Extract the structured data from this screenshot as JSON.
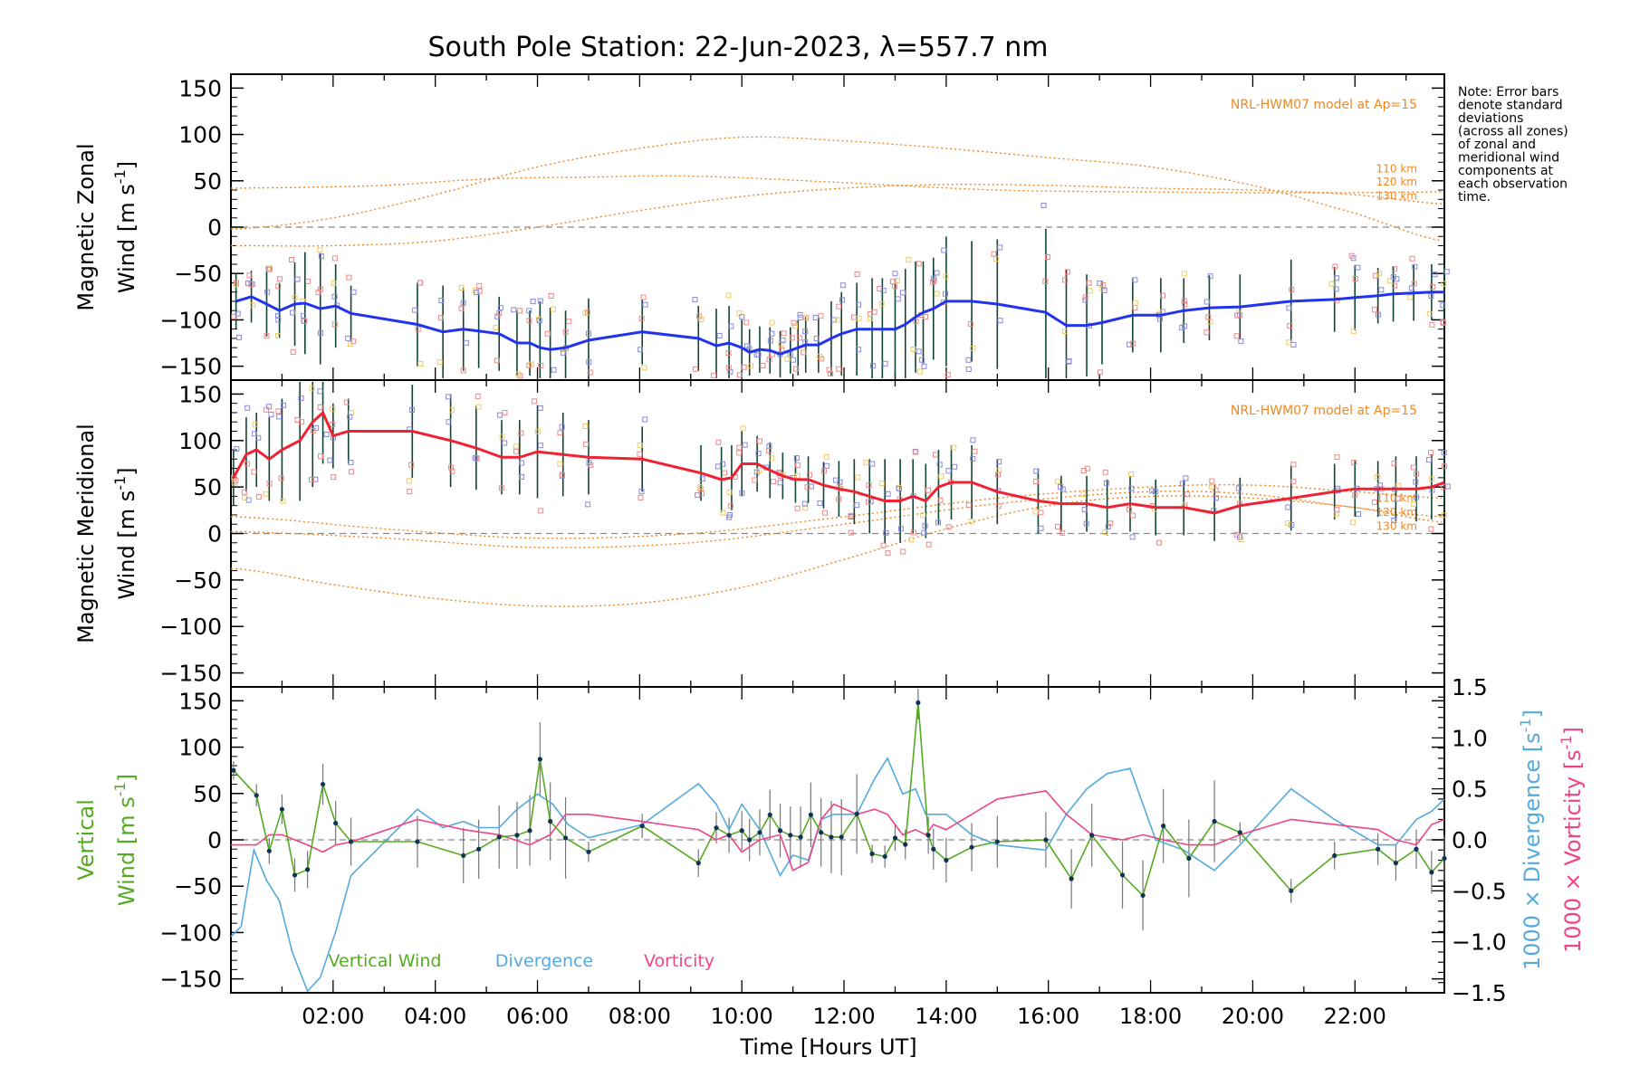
{
  "title": "South Pole Station: 22-Jun-2023, λ=557.7 nm",
  "note": [
    "Note: Error bars",
    "denote standard",
    "deviations",
    "(across all zones)",
    "of zonal and",
    "meridional wind",
    "components at",
    "each observation",
    "time."
  ],
  "colors": {
    "zonal": "#2233ee",
    "meridional": "#ee2233",
    "vertical": "#55aa22",
    "divergence": "#55aadd",
    "vorticity": "#ee4488",
    "model": "#ee8822",
    "errorbar": "#114433",
    "scatter_blue": "#8888dd",
    "scatter_red": "#ee8888",
    "scatter_yellow": "#eecc66",
    "zero": "#888888"
  },
  "chart_data": [
    {
      "type": "line",
      "panel": "zonal",
      "ylabel": [
        "Magnetic Zonal",
        "Wind [m s⁻¹]"
      ],
      "ylabel_parts": {
        "line1": "Magnetic Zonal",
        "line2": "Wind [m s",
        "sup": "-1",
        "close": "]"
      },
      "yticks": [
        "150",
        "100",
        "50",
        "0",
        "−50",
        "−100",
        "−150"
      ],
      "ylim": [
        -165,
        165
      ],
      "model_label": "NRL-HWM07 model at Ap=15",
      "model_alt_labels": [
        "110 km",
        "120 km",
        "130 km"
      ],
      "series": {
        "x": [
          0.1,
          0.4,
          0.7,
          0.95,
          1.25,
          1.45,
          1.75,
          2.05,
          2.35,
          3.65,
          4.15,
          4.55,
          4.85,
          5.25,
          5.6,
          5.85,
          6.05,
          6.25,
          6.55,
          7.0,
          8.05,
          9.15,
          9.5,
          9.75,
          10.0,
          10.15,
          10.35,
          10.55,
          10.75,
          10.95,
          11.1,
          11.25,
          11.5,
          11.75,
          11.95,
          12.25,
          12.55,
          12.75,
          13.0,
          13.2,
          13.4,
          13.55,
          13.75,
          14.0,
          14.5,
          15.0,
          15.95,
          16.35,
          16.75,
          17.05,
          17.65,
          18.2,
          18.65,
          19.15,
          19.75,
          20.75,
          21.6,
          22.0,
          22.45,
          22.75,
          23.15,
          23.5,
          23.75
        ],
        "values": [
          -80,
          -75,
          -83,
          -90,
          -83,
          -82,
          -88,
          -85,
          -93,
          -105,
          -113,
          -110,
          -112,
          -115,
          -125,
          -125,
          -130,
          -132,
          -130,
          -122,
          -113,
          -120,
          -128,
          -125,
          -130,
          -135,
          -132,
          -133,
          -137,
          -133,
          -130,
          -127,
          -127,
          -120,
          -115,
          -110,
          -110,
          -110,
          -110,
          -105,
          -97,
          -92,
          -88,
          -80,
          -80,
          -83,
          -92,
          -106,
          -106,
          -103,
          -95,
          -95,
          -90,
          -87,
          -86,
          -80,
          -78,
          -76,
          -74,
          -72,
          -71,
          -70,
          -70
        ]
      },
      "error_sd": [
        30,
        28,
        35,
        30,
        45,
        55,
        60,
        45,
        30,
        45,
        50,
        45,
        40,
        40,
        35,
        35,
        50,
        45,
        40,
        45,
        35,
        35,
        40,
        40,
        30,
        25,
        25,
        25,
        25,
        25,
        30,
        30,
        30,
        40,
        45,
        50,
        55,
        55,
        55,
        60,
        60,
        55,
        55,
        70,
        65,
        70,
        90,
        60,
        55,
        45,
        40,
        40,
        35,
        35,
        35,
        45,
        35,
        35,
        30,
        30,
        30,
        30,
        30
      ],
      "model": [
        {
          "name": "110 km",
          "start": 42,
          "anchors": [
            [
              0.1,
              42
            ],
            [
              3.0,
              45
            ],
            [
              5.0,
              52
            ],
            [
              7.0,
              54
            ],
            [
              9.0,
              55
            ],
            [
              12.0,
              48
            ],
            [
              15.0,
              40
            ],
            [
              18.0,
              38
            ],
            [
              21.0,
              37
            ],
            [
              23.75,
              38
            ]
          ]
        },
        {
          "name": "120 km",
          "start": -2,
          "anchors": [
            [
              0.1,
              -2
            ],
            [
              2.0,
              10
            ],
            [
              4.0,
              35
            ],
            [
              6.0,
              65
            ],
            [
              8.0,
              85
            ],
            [
              10.0,
              97
            ],
            [
              12.0,
              93
            ],
            [
              14.0,
              85
            ],
            [
              16.0,
              75
            ],
            [
              18.0,
              65
            ],
            [
              20.0,
              45
            ],
            [
              22.0,
              15
            ],
            [
              23.75,
              -15
            ]
          ]
        },
        {
          "name": "130 km",
          "start": -20,
          "anchors": [
            [
              0.1,
              -20
            ],
            [
              2.0,
              -20
            ],
            [
              4.0,
              -15
            ],
            [
              6.0,
              0
            ],
            [
              8.0,
              18
            ],
            [
              10.0,
              33
            ],
            [
              12.0,
              42
            ],
            [
              14.0,
              46
            ],
            [
              16.0,
              45
            ],
            [
              18.0,
              42
            ],
            [
              20.0,
              40
            ],
            [
              22.0,
              35
            ],
            [
              23.75,
              25
            ]
          ]
        }
      ]
    },
    {
      "type": "line",
      "panel": "meridional",
      "ylabel": [
        "Magnetic Meridional",
        "Wind [m s⁻¹]"
      ],
      "ylabel_parts": {
        "line1": "Magnetic Meridional",
        "line2": "Wind [m s",
        "sup": "-1",
        "close": "]"
      },
      "yticks": [
        "150",
        "100",
        "50",
        "0",
        "−50",
        "−100",
        "−150"
      ],
      "ylim": [
        -165,
        165
      ],
      "model_label": "NRL-HWM07 model at Ap=15",
      "model_alt_labels": [
        "110 km",
        "120 km",
        "130 km"
      ],
      "series": {
        "x": [
          0.05,
          0.3,
          0.5,
          0.75,
          1.0,
          1.35,
          1.6,
          1.8,
          2.0,
          2.3,
          3.55,
          4.3,
          4.8,
          5.3,
          5.65,
          6.0,
          6.5,
          7.0,
          8.05,
          9.2,
          9.6,
          9.8,
          10.0,
          10.3,
          10.55,
          10.8,
          11.05,
          11.3,
          11.6,
          11.9,
          12.2,
          12.5,
          12.8,
          13.1,
          13.35,
          13.6,
          13.85,
          14.1,
          14.5,
          15.0,
          15.8,
          16.25,
          16.75,
          17.15,
          17.6,
          18.1,
          18.65,
          19.25,
          19.75,
          20.75,
          21.6,
          22.0,
          22.45,
          22.8,
          23.2,
          23.5,
          23.75
        ],
        "values": [
          60,
          85,
          90,
          80,
          90,
          100,
          120,
          130,
          105,
          110,
          110,
          100,
          92,
          82,
          82,
          88,
          85,
          82,
          80,
          65,
          58,
          60,
          75,
          75,
          68,
          62,
          58,
          58,
          52,
          48,
          45,
          40,
          35,
          35,
          40,
          35,
          50,
          55,
          55,
          45,
          35,
          32,
          32,
          28,
          32,
          28,
          28,
          22,
          30,
          38,
          45,
          48,
          48,
          48,
          48,
          50,
          55
        ]
      },
      "error_sd": [
        30,
        40,
        40,
        45,
        55,
        65,
        70,
        55,
        35,
        35,
        50,
        50,
        45,
        40,
        40,
        50,
        45,
        40,
        35,
        30,
        35,
        35,
        35,
        30,
        30,
        25,
        25,
        25,
        25,
        30,
        35,
        40,
        45,
        45,
        40,
        40,
        40,
        40,
        40,
        35,
        35,
        30,
        30,
        30,
        30,
        30,
        30,
        30,
        30,
        35,
        30,
        30,
        30,
        35,
        35,
        35,
        30
      ]
    },
    {
      "type": "line",
      "panel": "vertical",
      "ylabel": [
        "Vertical",
        "Wind [m s⁻¹]"
      ],
      "ylabel_parts": {
        "line1": "Vertical",
        "line2": "Wind [m s",
        "sup": "-1",
        "close": "]"
      },
      "yticks": [
        "150",
        "100",
        "50",
        "0",
        "−50",
        "−100",
        "−150"
      ],
      "ylim": [
        -165,
        165
      ],
      "xlabel": "Time [Hours UT]",
      "xticks": [
        "02:00",
        "04:00",
        "06:00",
        "08:00",
        "10:00",
        "12:00",
        "14:00",
        "16:00",
        "18:00",
        "20:00",
        "22:00"
      ],
      "xlim": [
        0.0,
        23.75
      ],
      "y2label": "1000 × Divergence [s⁻¹]",
      "y2label_parts": {
        "text": "1000 × Divergence ",
        "unit": "[s",
        "sup": "-1",
        "close": "]"
      },
      "y3label": "1000 × Vorticity [s⁻¹]",
      "y3label_parts": {
        "text": "1000 × Vorticity ",
        "unit": "[s",
        "sup": "-1",
        "close": "]"
      },
      "y2ticks": [
        "1.5",
        "1.0",
        "0.5",
        "0.0",
        "−0.5",
        "−1.0",
        "−1.5"
      ],
      "y2lim": [
        -1.5,
        1.5
      ],
      "legend": [
        "Vertical Wind",
        "Divergence",
        "Vorticity"
      ],
      "series": [
        {
          "name": "Vertical Wind",
          "x": [
            0.05,
            0.5,
            0.75,
            1.0,
            1.25,
            1.5,
            1.8,
            2.05,
            2.35,
            3.65,
            4.55,
            4.85,
            5.25,
            5.6,
            5.85,
            6.05,
            6.25,
            6.55,
            7.0,
            8.05,
            9.15,
            9.5,
            9.75,
            10.0,
            10.15,
            10.35,
            10.55,
            10.75,
            10.95,
            11.15,
            11.35,
            11.55,
            11.75,
            11.95,
            12.25,
            12.55,
            12.8,
            13.0,
            13.2,
            13.45,
            13.65,
            13.75,
            14.0,
            14.5,
            15.0,
            15.95,
            16.45,
            16.85,
            17.45,
            17.85,
            18.25,
            18.75,
            19.25,
            19.75,
            20.75,
            21.6,
            22.45,
            22.8,
            23.2,
            23.5,
            23.75
          ],
          "values": [
            75,
            48,
            -12,
            33,
            -38,
            -32,
            60,
            18,
            -2,
            -2,
            -17,
            -10,
            3,
            5,
            10,
            87,
            20,
            2,
            -13,
            15,
            -25,
            13,
            5,
            10,
            0,
            8,
            27,
            10,
            5,
            3,
            27,
            8,
            3,
            3,
            28,
            -15,
            -18,
            2,
            -5,
            148,
            5,
            -10,
            -22,
            -8,
            -2,
            0,
            -42,
            5,
            -38,
            -60,
            15,
            -20,
            20,
            8,
            -55,
            -17,
            -10,
            -25,
            -10,
            -35,
            -20
          ]
        },
        {
          "name": "Divergence",
          "x": [
            0.0,
            0.2,
            0.45,
            0.7,
            0.95,
            1.2,
            1.5,
            1.75,
            2.05,
            2.35,
            3.65,
            4.15,
            4.55,
            4.85,
            5.25,
            5.6,
            6.0,
            6.3,
            6.6,
            7.0,
            8.05,
            9.15,
            9.5,
            9.75,
            10.0,
            10.35,
            10.75,
            11.0,
            11.3,
            11.55,
            11.8,
            12.25,
            12.6,
            12.85,
            13.15,
            13.4,
            13.6,
            13.75,
            14.0,
            14.5,
            15.0,
            15.95,
            16.35,
            16.75,
            17.15,
            17.6,
            18.1,
            18.65,
            19.25,
            19.75,
            20.75,
            21.6,
            22.45,
            22.8,
            23.2,
            23.5,
            23.75
          ],
          "values": [
            -0.95,
            -0.85,
            -0.1,
            -0.4,
            -0.6,
            -1.1,
            -1.55,
            -1.35,
            -0.9,
            -0.35,
            0.3,
            0.12,
            0.18,
            0.12,
            0.12,
            0.3,
            0.45,
            0.35,
            0.15,
            0.02,
            0.15,
            0.55,
            0.35,
            0.1,
            0.35,
            0.1,
            -0.35,
            -0.15,
            -0.2,
            0.2,
            0.25,
            0.25,
            0.6,
            0.8,
            0.45,
            0.5,
            0.25,
            0.25,
            0.25,
            0.05,
            -0.05,
            -0.1,
            0.25,
            0.5,
            0.65,
            0.7,
            0.0,
            -0.1,
            -0.3,
            -0.05,
            0.5,
            0.2,
            -0.05,
            -0.05,
            0.2,
            0.28,
            0.4
          ]
        },
        {
          "name": "Vorticity",
          "x": [
            0.0,
            0.5,
            0.75,
            1.0,
            1.25,
            1.5,
            1.8,
            2.05,
            2.35,
            3.65,
            4.55,
            5.25,
            5.85,
            6.25,
            6.55,
            7.0,
            8.05,
            9.15,
            9.5,
            9.75,
            10.0,
            10.35,
            10.75,
            11.0,
            11.3,
            11.55,
            11.8,
            12.25,
            12.6,
            12.85,
            13.15,
            13.4,
            13.6,
            13.75,
            14.0,
            14.5,
            15.0,
            15.95,
            16.35,
            16.85,
            17.45,
            17.85,
            18.25,
            18.75,
            19.25,
            19.75,
            20.75,
            21.6,
            22.45,
            22.8,
            23.2,
            23.5,
            23.75
          ],
          "values": [
            -0.05,
            -0.05,
            0.05,
            0.05,
            0.0,
            -0.05,
            -0.12,
            -0.05,
            -0.02,
            0.2,
            0.1,
            0.05,
            -0.05,
            0.05,
            0.25,
            0.25,
            0.18,
            0.1,
            0.0,
            0.05,
            -0.12,
            0.0,
            0.05,
            -0.3,
            -0.22,
            0.2,
            0.35,
            0.25,
            0.3,
            0.25,
            0.05,
            0.1,
            0.05,
            0.15,
            0.1,
            0.25,
            0.4,
            0.48,
            0.25,
            0.05,
            0.0,
            0.05,
            0.0,
            -0.05,
            -0.05,
            0.05,
            0.2,
            0.15,
            0.1,
            0.0,
            -0.05,
            0.15,
            0.2
          ]
        }
      ]
    }
  ]
}
